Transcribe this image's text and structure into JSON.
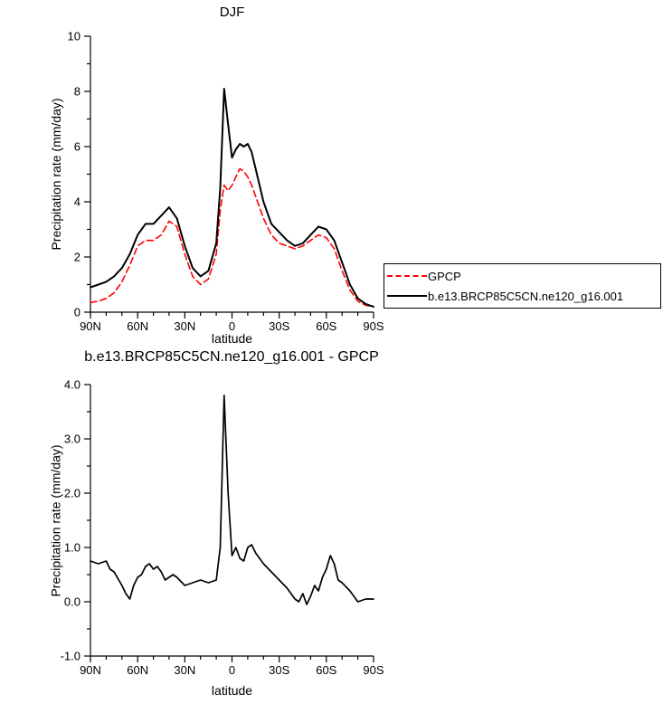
{
  "chart_data": [
    {
      "type": "line",
      "title": "DJF",
      "xlabel": "latitude",
      "ylabel": "Precipitation rate (mm/day)",
      "xlim": [
        90,
        -90
      ],
      "ylim": [
        0,
        10
      ],
      "grid": false,
      "legend_position": "outside-right",
      "x_ticks": {
        "values": [
          90,
          60,
          30,
          0,
          -30,
          -60,
          -90
        ],
        "labels": [
          "90N",
          "60N",
          "30N",
          "0",
          "30S",
          "60S",
          "90S"
        ],
        "minor": [
          80,
          70,
          50,
          40,
          20,
          10,
          -10,
          -20,
          -40,
          -50,
          -70,
          -80
        ]
      },
      "y_ticks": {
        "values": [
          0,
          2,
          4,
          6,
          8,
          10
        ],
        "labels": [
          "0",
          "2",
          "4",
          "6",
          "8",
          "10"
        ],
        "minor": [
          1,
          3,
          5,
          7,
          9
        ]
      },
      "x": [
        90,
        85,
        80,
        75,
        70,
        65,
        60,
        55,
        50,
        45,
        40,
        35,
        30,
        25,
        20,
        15,
        10,
        7.5,
        5,
        2.5,
        0,
        -2.5,
        -5,
        -7.5,
        -10,
        -12.5,
        -15,
        -20,
        -25,
        -30,
        -35,
        -40,
        -45,
        -50,
        -55,
        -60,
        -65,
        -70,
        -75,
        -80,
        -85,
        -90
      ],
      "series": [
        {
          "name": "GPCP",
          "color": "#ff0000",
          "dash": "dashed",
          "width": 1.6,
          "values": [
            0.35,
            0.4,
            0.5,
            0.7,
            1.1,
            1.7,
            2.4,
            2.6,
            2.6,
            2.8,
            3.3,
            3.1,
            2.1,
            1.3,
            1.0,
            1.2,
            2.1,
            3.7,
            4.6,
            4.4,
            4.6,
            4.9,
            5.2,
            5.1,
            4.9,
            4.6,
            4.2,
            3.4,
            2.8,
            2.5,
            2.4,
            2.3,
            2.4,
            2.6,
            2.8,
            2.7,
            2.3,
            1.5,
            0.8,
            0.4,
            0.25,
            0.2
          ]
        },
        {
          "name": "b.e13.BRCP85C5CN.ne120_g16.001",
          "color": "#000000",
          "dash": "solid",
          "width": 2,
          "values": [
            0.9,
            1.0,
            1.1,
            1.3,
            1.6,
            2.1,
            2.8,
            3.2,
            3.2,
            3.5,
            3.8,
            3.4,
            2.4,
            1.6,
            1.3,
            1.5,
            2.5,
            4.5,
            8.1,
            6.8,
            5.6,
            5.9,
            6.1,
            6.0,
            6.1,
            5.8,
            5.2,
            4.0,
            3.2,
            2.9,
            2.6,
            2.4,
            2.5,
            2.8,
            3.1,
            3.0,
            2.6,
            1.8,
            1.0,
            0.5,
            0.3,
            0.2
          ]
        }
      ]
    },
    {
      "type": "line",
      "title": "b.e13.BRCP85C5CN.ne120_g16.001 - GPCP",
      "xlabel": "latitude",
      "ylabel": "Precipitation rate (mm/day)",
      "xlim": [
        90,
        -90
      ],
      "ylim": [
        -1,
        4
      ],
      "grid": false,
      "legend_position": "none",
      "x_ticks": {
        "values": [
          90,
          60,
          30,
          0,
          -30,
          -60,
          -90
        ],
        "labels": [
          "90N",
          "60N",
          "30N",
          "0",
          "30S",
          "60S",
          "90S"
        ],
        "minor": [
          80,
          70,
          50,
          40,
          20,
          10,
          -10,
          -20,
          -40,
          -50,
          -70,
          -80
        ]
      },
      "y_ticks": {
        "values": [
          -1,
          0,
          1,
          2,
          3,
          4
        ],
        "labels": [
          "-1.0",
          "0.0",
          "1.0",
          "2.0",
          "3.0",
          "4.0"
        ],
        "minor": [
          -0.5,
          0.5,
          1.5,
          2.5,
          3.5
        ]
      },
      "x": [
        90,
        85,
        80,
        77.5,
        75,
        70,
        67.5,
        65,
        62.5,
        60,
        57.5,
        55,
        52.5,
        50,
        47.5,
        45,
        42.5,
        40,
        37.5,
        35,
        30,
        25,
        20,
        15,
        10,
        7.5,
        5,
        2.5,
        0,
        -2.5,
        -5,
        -7.5,
        -10,
        -12.5,
        -15,
        -17.5,
        -20,
        -25,
        -30,
        -35,
        -40,
        -42.5,
        -45,
        -47.5,
        -50,
        -52.5,
        -55,
        -57.5,
        -60,
        -62.5,
        -65,
        -67.5,
        -70,
        -75,
        -80,
        -85,
        -90
      ],
      "series": [
        {
          "name": "b.e13.BRCP85C5CN.ne120_g16.001 - GPCP",
          "color": "#000000",
          "dash": "solid",
          "width": 1.7,
          "values": [
            0.75,
            0.7,
            0.75,
            0.6,
            0.55,
            0.3,
            0.15,
            0.05,
            0.3,
            0.45,
            0.5,
            0.65,
            0.7,
            0.6,
            0.65,
            0.55,
            0.4,
            0.45,
            0.5,
            0.45,
            0.3,
            0.35,
            0.4,
            0.35,
            0.4,
            1.0,
            3.8,
            2.0,
            0.85,
            1.0,
            0.8,
            0.75,
            1.0,
            1.05,
            0.9,
            0.8,
            0.7,
            0.55,
            0.4,
            0.25,
            0.05,
            0.0,
            0.15,
            -0.05,
            0.1,
            0.3,
            0.2,
            0.45,
            0.6,
            0.85,
            0.7,
            0.4,
            0.35,
            0.2,
            0.0,
            0.05,
            0.05
          ]
        }
      ]
    }
  ]
}
